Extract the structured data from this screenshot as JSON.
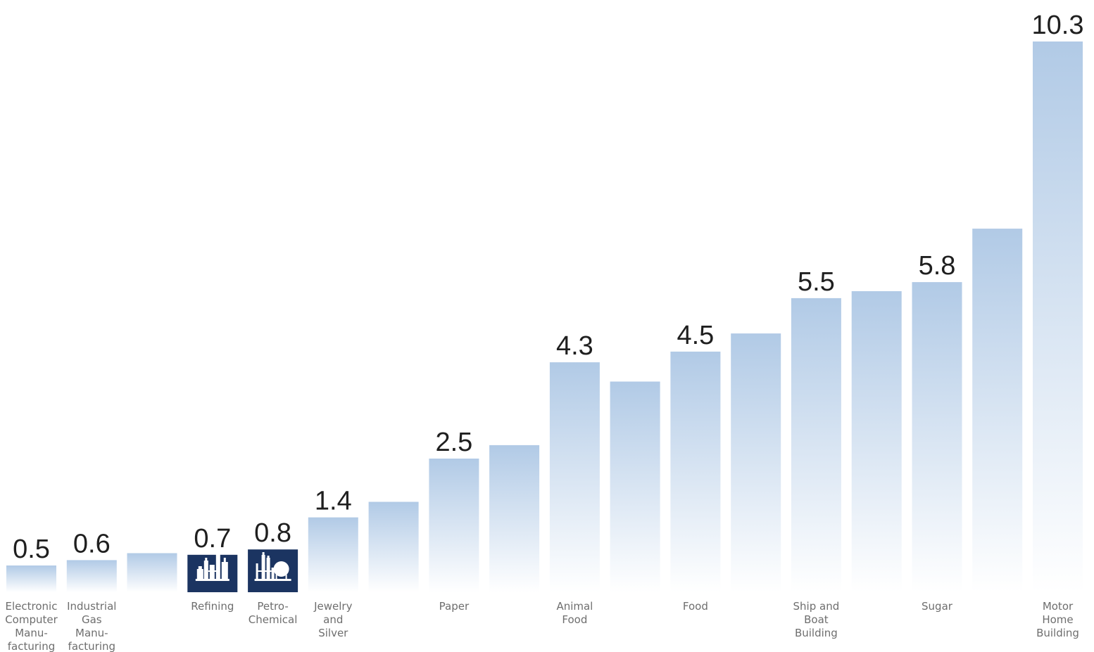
{
  "chart_data": {
    "type": "bar",
    "title": "",
    "xlabel": "",
    "ylabel": "",
    "ylim": [
      0,
      10.3
    ],
    "grid": false,
    "legend": "none",
    "colors": {
      "default_top": "#b1cae6",
      "default_bottom": "#ffffff",
      "highlight": "#1b3461",
      "value_text": "#1f1f1f",
      "label_text": "#6e6e6e"
    },
    "bars": [
      {
        "label": [
          "Electronic",
          "Computer",
          "Manu-",
          "facturing"
        ],
        "value": 0.5,
        "value_label": "0.5",
        "highlight": false
      },
      {
        "label": [
          "Industrial",
          "Gas",
          "Manu-",
          "facturing"
        ],
        "value": 0.6,
        "value_label": "0.6",
        "highlight": false
      },
      {
        "label": [],
        "value": 0.73,
        "value_label": "",
        "highlight": false
      },
      {
        "label": [
          "Refining"
        ],
        "value": 0.7,
        "value_label": "0.7",
        "highlight": true,
        "icon": "refinery-icon"
      },
      {
        "label": [
          "Petro-",
          "Chemical"
        ],
        "value": 0.8,
        "value_label": "0.8",
        "highlight": true,
        "icon": "petrochemical-plant-icon"
      },
      {
        "label": [
          "Jewelry",
          "and",
          "Silver"
        ],
        "value": 1.4,
        "value_label": "1.4",
        "highlight": false
      },
      {
        "label": [],
        "value": 1.69,
        "value_label": "",
        "highlight": false
      },
      {
        "label": [
          "Paper"
        ],
        "value": 2.5,
        "value_label": "2.5",
        "highlight": false
      },
      {
        "label": [],
        "value": 2.75,
        "value_label": "",
        "highlight": false
      },
      {
        "label": [
          "Animal",
          "Food"
        ],
        "value": 4.3,
        "value_label": "4.3",
        "highlight": false
      },
      {
        "label": [],
        "value": 3.94,
        "value_label": "",
        "highlight": false
      },
      {
        "label": [
          "Food"
        ],
        "value": 4.5,
        "value_label": "4.5",
        "highlight": false
      },
      {
        "label": [],
        "value": 4.84,
        "value_label": "",
        "highlight": false
      },
      {
        "label": [
          "Ship and",
          "Boat",
          "Building"
        ],
        "value": 5.5,
        "value_label": "5.5",
        "highlight": false
      },
      {
        "label": [],
        "value": 5.63,
        "value_label": "",
        "highlight": false
      },
      {
        "label": [
          "Sugar"
        ],
        "value": 5.8,
        "value_label": "5.8",
        "highlight": false
      },
      {
        "label": [],
        "value": 6.8,
        "value_label": "",
        "highlight": false
      },
      {
        "label": [
          "Motor",
          "Home",
          "Building"
        ],
        "value": 10.3,
        "value_label": "10.3",
        "highlight": false
      }
    ]
  }
}
